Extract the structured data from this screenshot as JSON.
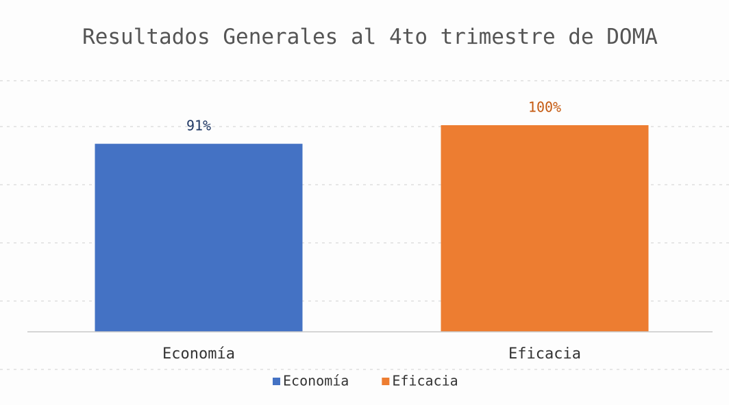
{
  "chart_data": {
    "type": "bar",
    "title": "Resultados Generales al 4to trimestre de DOMA",
    "categories": [
      "Economía",
      "Eficacia"
    ],
    "values": [
      91,
      100
    ],
    "value_labels": [
      "91%",
      "100%"
    ],
    "colors": [
      "#4472c4",
      "#ed7d31"
    ],
    "label_colors": [
      "#203864",
      "#c55a11"
    ],
    "ylim": [
      0,
      100
    ],
    "legend": "bottom"
  }
}
